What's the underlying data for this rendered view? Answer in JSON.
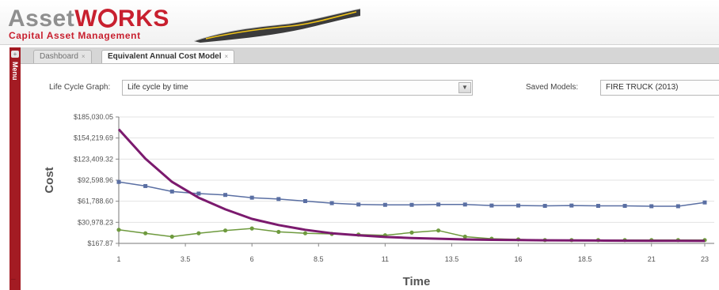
{
  "app": {
    "logo_part1": "Asset",
    "logo_part2": "W",
    "logo_part3": "RKS",
    "subtitle": "Capital Asset Management"
  },
  "sidebar": {
    "expander_icon": "+",
    "label": "Menu"
  },
  "tabs": [
    {
      "label": "Dashboard",
      "active": false
    },
    {
      "label": "Equivalent Annual Cost Model",
      "active": true
    }
  ],
  "form": {
    "graph_label": "Life Cycle Graph:",
    "graph_value": "Life cycle by time",
    "saved_label": "Saved Models:",
    "saved_value": "FIRE TRUCK (2013)"
  },
  "colors": {
    "brand_red": "#c8202f",
    "series_purple": "#7b1a6e",
    "series_blue": "#5a6fa3",
    "series_green": "#6e9a3e"
  },
  "chart_data": {
    "type": "line",
    "title": "",
    "xlabel": "Time",
    "ylabel": "Cost",
    "xlim": [
      1,
      23
    ],
    "ylim": [
      167.87,
      185030.05
    ],
    "grid": true,
    "y_ticks": [
      "$185,030.05",
      "$154,219.69",
      "$123,409.32",
      "$92,598.96",
      "$61,788.60",
      "$30,978.23",
      "$167.87"
    ],
    "x_ticks": [
      "1",
      "3.5",
      "6",
      "8.5",
      "11",
      "13.5",
      "16",
      "18.5",
      "21",
      "23"
    ],
    "x": [
      1,
      2,
      3,
      4,
      5,
      6,
      7,
      8,
      9,
      10,
      11,
      12,
      13,
      14,
      15,
      16,
      17,
      18,
      19,
      20,
      21,
      22,
      23
    ],
    "series": [
      {
        "color": "#7b1a6e",
        "width": 3,
        "marker": false,
        "values": [
          167000,
          124000,
          90000,
          67000,
          50000,
          36000,
          27000,
          20000,
          15000,
          12000,
          9500,
          8000,
          7000,
          6000,
          5400,
          5000,
          4700,
          4500,
          4300,
          4100,
          4000,
          3900,
          3800
        ]
      },
      {
        "color": "#5a6fa3",
        "width": 1.5,
        "marker": "square",
        "values": [
          90000,
          84000,
          76000,
          73000,
          71000,
          67000,
          65000,
          62000,
          59000,
          57000,
          56500,
          56500,
          57000,
          57000,
          55500,
          55500,
          55000,
          55500,
          55000,
          55000,
          54500,
          54500,
          60000
        ]
      },
      {
        "color": "#6e9a3e",
        "width": 1.5,
        "marker": "circle",
        "values": [
          20000,
          15000,
          10000,
          15000,
          19000,
          22000,
          17000,
          15000,
          14000,
          13000,
          12000,
          16000,
          19000,
          10000,
          7000,
          6000,
          5000,
          5000,
          5000,
          5000,
          5000,
          5000,
          5000
        ]
      }
    ]
  }
}
